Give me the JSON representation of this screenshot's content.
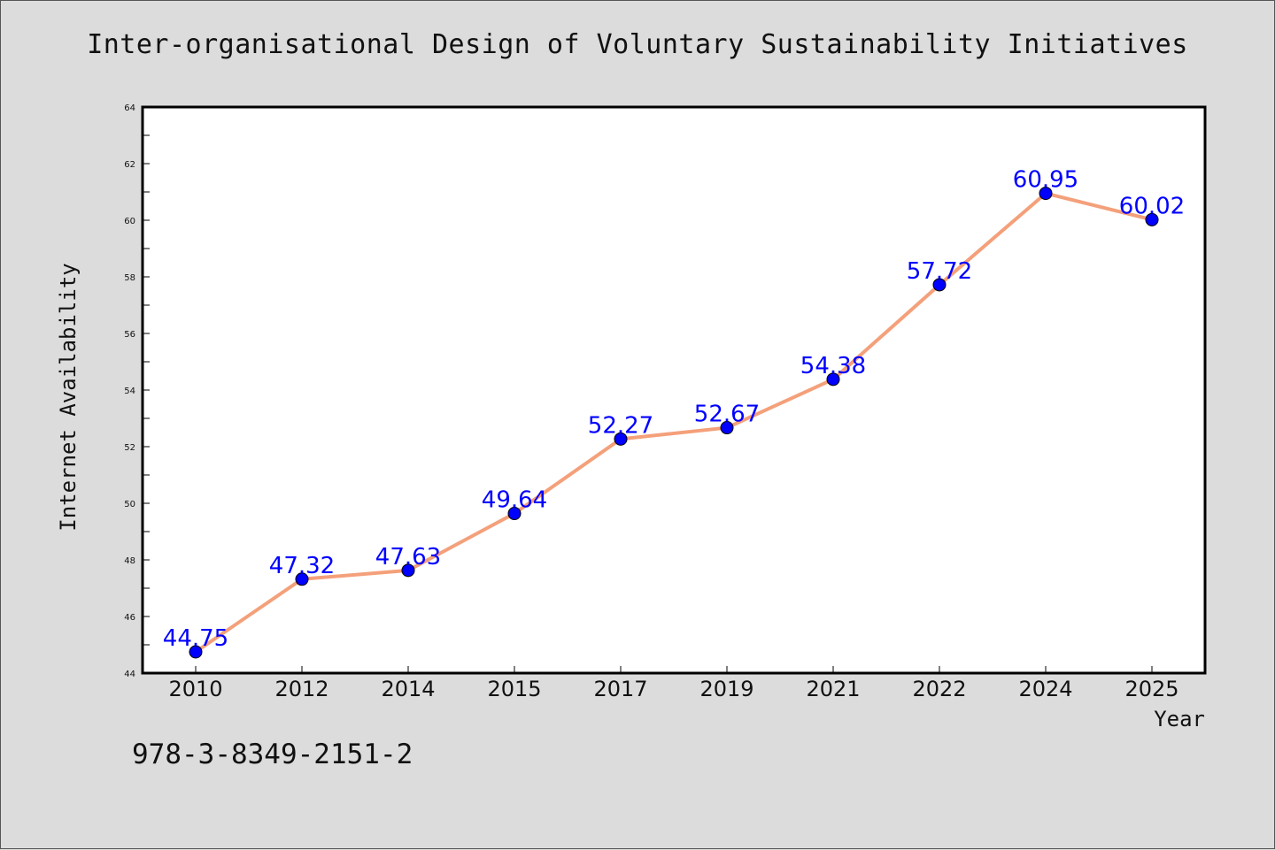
{
  "chart_data": {
    "type": "line",
    "title": "Inter-organisational Design of Voluntary Sustainability Initiatives",
    "xlabel": "Year",
    "ylabel": "Internet Availability",
    "categories": [
      "2010",
      "2012",
      "2014",
      "2015",
      "2017",
      "2019",
      "2021",
      "2022",
      "2024",
      "2025"
    ],
    "series": [
      {
        "values": [
          44.75,
          47.32,
          47.63,
          49.64,
          52.27,
          52.67,
          54.38,
          57.72,
          60.95,
          60.02
        ],
        "line_color": "#f4a07a",
        "marker_color": "#0000ff"
      }
    ],
    "data_labels": [
      "44.75",
      "47.32",
      "47.63",
      "49.64",
      "52.27",
      "52.67",
      "54.38",
      "57.72",
      "60.95",
      "60.02"
    ],
    "ylim": [
      44,
      64
    ],
    "yticks": [
      44,
      46,
      48,
      50,
      52,
      54,
      56,
      58,
      60,
      62,
      64
    ],
    "grid": false,
    "legend": "none",
    "label_color": "#0000ff"
  },
  "footer": {
    "isbn": "978-3-8349-2151-2"
  }
}
